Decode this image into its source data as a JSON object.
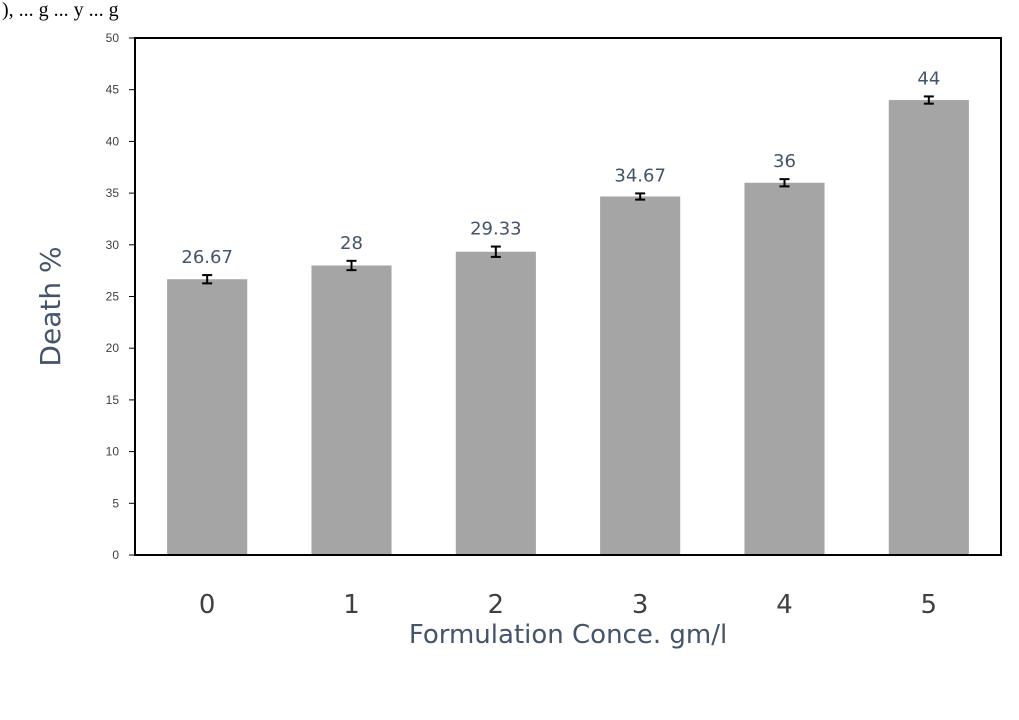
{
  "caption_fragment": "), ... g ... y ... g",
  "colors": {
    "bar": "#a5a5a5",
    "axis": "#000000",
    "text": "#404040",
    "label": "#44546a",
    "error_bar": "#000000"
  },
  "chart_data": {
    "type": "bar",
    "title": "",
    "xlabel": "Formulation Conce. gm/l",
    "ylabel": "Death %",
    "categories": [
      "0",
      "1",
      "2",
      "3",
      "4",
      "5"
    ],
    "values": [
      26.67,
      28,
      29.33,
      34.67,
      36,
      44
    ],
    "data_labels": [
      "26.67",
      "28",
      "29.33",
      "34.67",
      "36",
      "44"
    ],
    "error": [
      0.4,
      0.45,
      0.5,
      0.3,
      0.35,
      0.35
    ],
    "ylim": [
      0,
      50
    ],
    "yticks": [
      0,
      5,
      10,
      15,
      20,
      25,
      30,
      35,
      40,
      45,
      50
    ],
    "grid": false,
    "legend": "none"
  }
}
